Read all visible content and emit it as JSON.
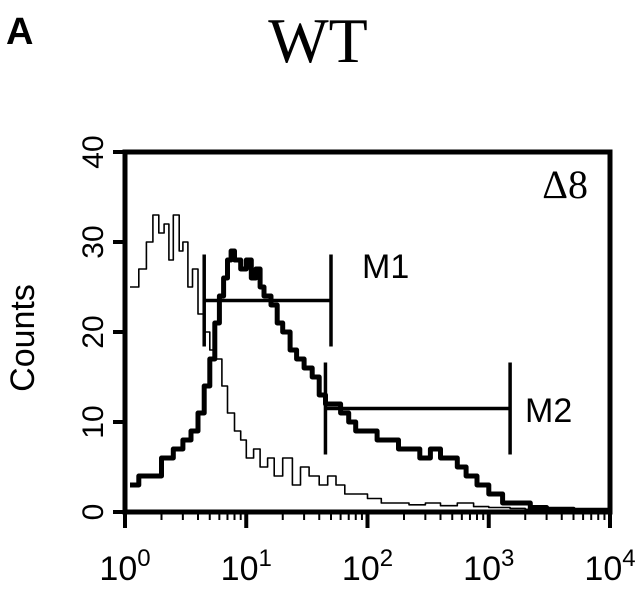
{
  "panel_label": "A",
  "chart_data": {
    "type": "line",
    "title": "WT",
    "annotation": "Δ8",
    "xlabel": "",
    "ylabel": "Counts",
    "xscale": "log",
    "xlim": [
      1,
      10000
    ],
    "ylim": [
      0,
      40
    ],
    "x_ticks": [
      {
        "base": "10",
        "exp": "0",
        "value": 1
      },
      {
        "base": "10",
        "exp": "1",
        "value": 10
      },
      {
        "base": "10",
        "exp": "2",
        "value": 100
      },
      {
        "base": "10",
        "exp": "3",
        "value": 1000
      },
      {
        "base": "10",
        "exp": "4",
        "value": 10000
      }
    ],
    "y_ticks": [
      {
        "label": "0",
        "value": 0
      },
      {
        "label": "10",
        "value": 10
      },
      {
        "label": "20",
        "value": 20
      },
      {
        "label": "30",
        "value": 30
      },
      {
        "label": "40",
        "value": 40
      }
    ],
    "grid": false,
    "series": [
      {
        "style": "thin",
        "color": "#000000",
        "x": [
          1.1,
          1.3,
          1.5,
          1.7,
          1.9,
          2.1,
          2.3,
          2.5,
          2.8,
          3.0,
          3.3,
          3.6,
          4.0,
          4.5,
          5.0,
          5.6,
          6.3,
          7.0,
          8.0,
          9.0,
          10,
          11.5,
          13,
          15,
          17,
          20,
          24,
          28,
          33,
          40,
          47,
          55,
          65,
          80,
          100,
          130,
          170,
          220,
          300,
          400,
          550,
          750,
          1000,
          1500,
          2000,
          3000,
          5000,
          10000
        ],
        "y": [
          25,
          27,
          30,
          33,
          31,
          32,
          28,
          33,
          29,
          30,
          25,
          27,
          22,
          20,
          18,
          17,
          14,
          11,
          9,
          8,
          6,
          7,
          5,
          6,
          4,
          6,
          3,
          5,
          4,
          3,
          4,
          3,
          2,
          2,
          1.5,
          1,
          1,
          0.8,
          1,
          0.7,
          1,
          0.6,
          0.5,
          0.4,
          0.3,
          0.3,
          0.2,
          0.2
        ]
      },
      {
        "style": "thick",
        "color": "#000000",
        "x": [
          1.1,
          1.3,
          1.6,
          2.0,
          2.5,
          3.0,
          3.5,
          4.0,
          4.5,
          5.0,
          5.5,
          6.0,
          6.5,
          7.0,
          7.5,
          8.0,
          9.0,
          10,
          11,
          12,
          13,
          14,
          16,
          18,
          20,
          23,
          26,
          30,
          35,
          40,
          45,
          50,
          60,
          70,
          80,
          100,
          120,
          150,
          180,
          220,
          270,
          330,
          400,
          480,
          550,
          650,
          800,
          1000,
          1300,
          1700,
          2200,
          3000,
          5000,
          10000
        ],
        "y": [
          3,
          4,
          4,
          6,
          7,
          8,
          9,
          11,
          14,
          17,
          21,
          24,
          26,
          28,
          29,
          28,
          27,
          28,
          26,
          27,
          25,
          24,
          23,
          21,
          20,
          18,
          17,
          16,
          15,
          13,
          12,
          12,
          11,
          10,
          9,
          9,
          8,
          8,
          7,
          7,
          6,
          7,
          6,
          6,
          5,
          4,
          3,
          2,
          1,
          1,
          0.5,
          0.3,
          0.2,
          0.2
        ]
      }
    ],
    "markers": [
      {
        "label": "M1",
        "x_start": 4.5,
        "x_end": 50,
        "y": 23.5
      },
      {
        "label": "M2",
        "x_start": 45,
        "x_end": 1500,
        "y": 11.5
      }
    ]
  }
}
